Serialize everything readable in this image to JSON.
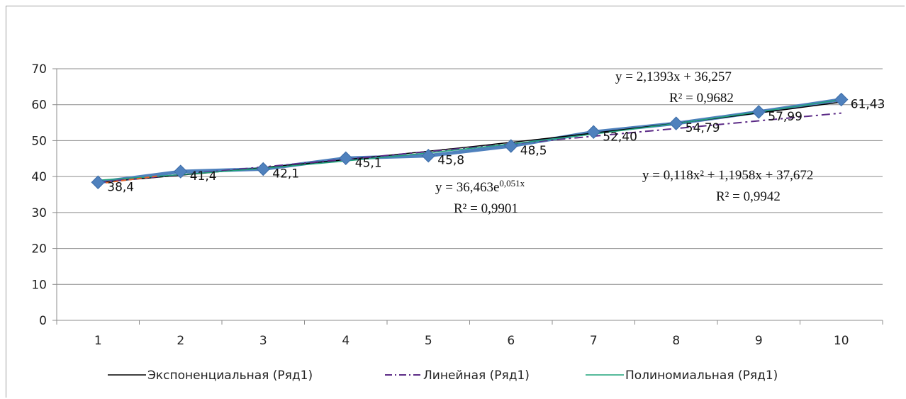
{
  "chart_data": {
    "type": "line",
    "x": [
      1,
      2,
      3,
      4,
      5,
      6,
      7,
      8,
      9,
      10
    ],
    "categories": [
      "1",
      "2",
      "3",
      "4",
      "5",
      "6",
      "7",
      "8",
      "9",
      "10"
    ],
    "ylim": [
      0,
      70
    ],
    "yticks": [
      0,
      10,
      20,
      30,
      40,
      50,
      60,
      70
    ],
    "grid": true,
    "legend_position": "bottom",
    "series": [
      {
        "values": [
          38.4,
          41.4,
          42.1,
          45.1,
          45.8,
          48.5,
          52.4,
          54.79,
          57.99,
          61.43
        ],
        "data_labels": [
          "38,4",
          "41,4",
          "42,1",
          "45,1",
          "45,8",
          "48,5",
          "52,40",
          "54,79",
          "57,99",
          "61,43"
        ],
        "color": "#4f81bd",
        "marker": "diamond"
      }
    ],
    "trendlines": [
      {
        "name": "Экспоненциальная (Ряд1)",
        "kind": "exponential",
        "a": 36.463,
        "b": 0.051,
        "equation": "y = 36,463e",
        "equation_exp": "0,051x",
        "r2": "R² = 0,9901",
        "color": "#000000",
        "dash": "solid"
      },
      {
        "name": "Линейная (Ряд1)",
        "kind": "linear",
        "a": 2.1393,
        "b": 36.257,
        "equation": "y = 2,1393x + 36,257",
        "r2": "R² = 0,9682",
        "color": "#5b2a86",
        "dash": "dashdot"
      },
      {
        "name": "Полиномиальная (Ряд1)",
        "kind": "poly2",
        "a": 0.118,
        "b": 1.1958,
        "c": 37.672,
        "equation": "y = 0,118x² + 1,1958x + 37,672",
        "r2": "R² = 0,9942",
        "color": "#1fa37a",
        "dash": "solid"
      }
    ]
  }
}
